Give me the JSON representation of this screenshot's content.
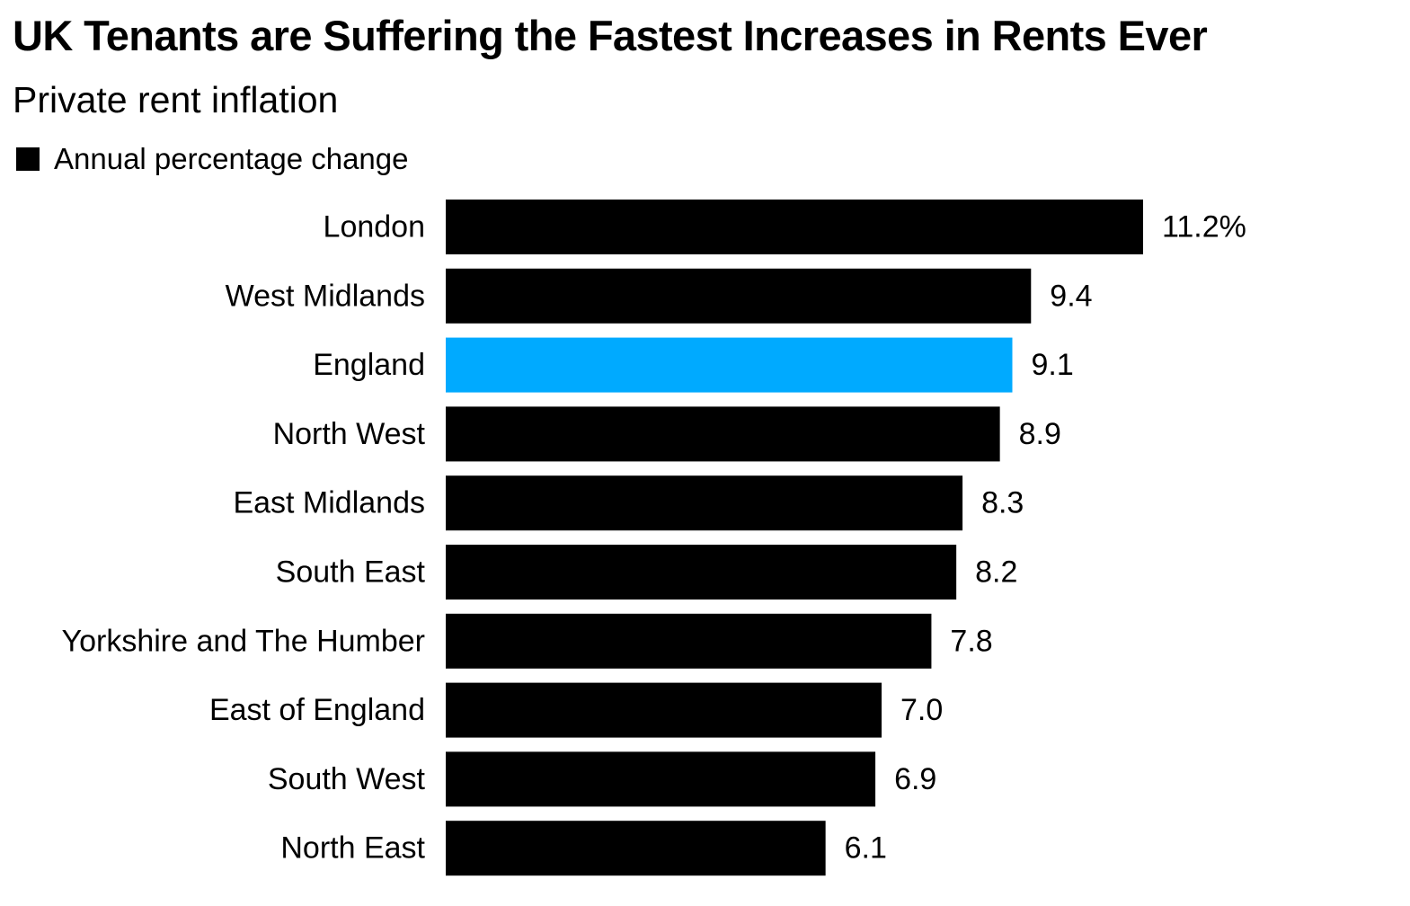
{
  "chart_data": {
    "type": "bar",
    "orientation": "horizontal",
    "title": "UK Tenants are Suffering the Fastest Increases in Rents Ever",
    "subtitle": "Private rent inflation",
    "legend": [
      {
        "label": "Annual percentage change",
        "color": "#000000"
      }
    ],
    "legend_position": "top-left",
    "categories": [
      "London",
      "West Midlands",
      "England",
      "North West",
      "East Midlands",
      "South East",
      "Yorkshire and The Humber",
      "East of England",
      "South West",
      "North East"
    ],
    "series": [
      {
        "name": "Annual percentage change",
        "values": [
          11.2,
          9.4,
          9.1,
          8.9,
          8.3,
          8.2,
          7.8,
          7.0,
          6.9,
          6.1
        ]
      }
    ],
    "value_labels": [
      "11.2%",
      "9.4",
      "9.1",
      "8.9",
      "8.3",
      "8.2",
      "7.8",
      "7.0",
      "6.9",
      "6.1"
    ],
    "bar_colors": [
      "#000000",
      "#000000",
      "#00aaff",
      "#000000",
      "#000000",
      "#000000",
      "#000000",
      "#000000",
      "#000000",
      "#000000"
    ],
    "xlim": [
      0,
      11.2
    ],
    "grid": false,
    "axes_visible": false
  }
}
